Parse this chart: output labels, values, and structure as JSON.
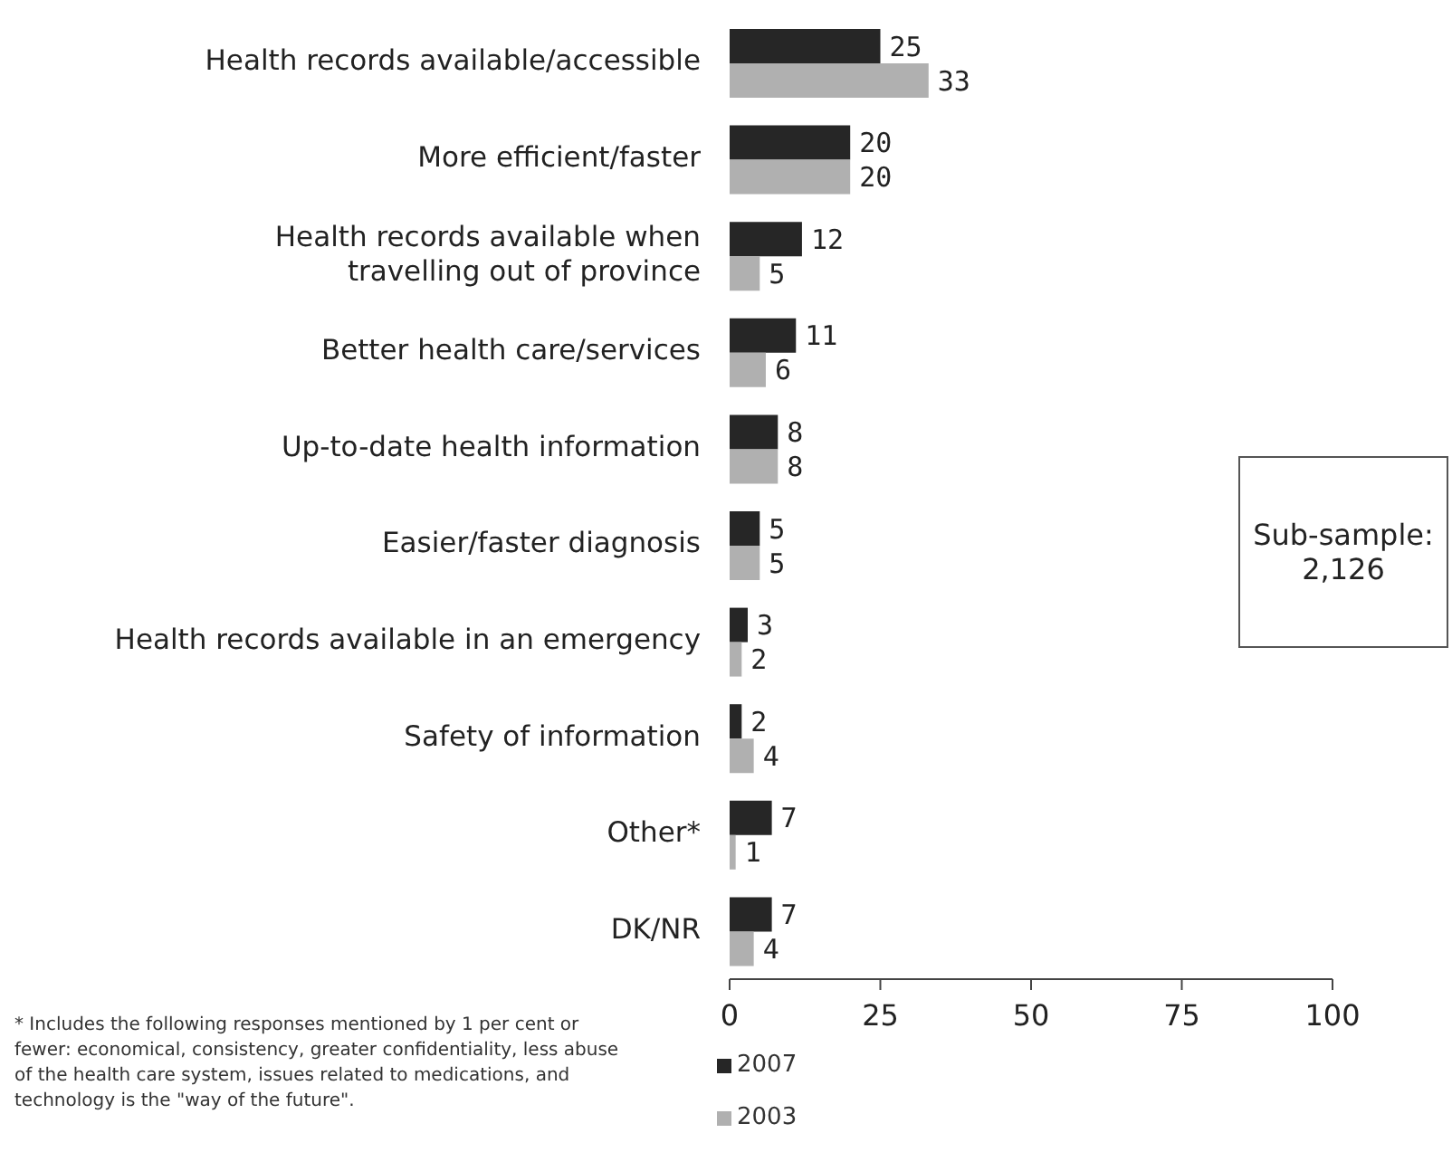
{
  "chart_data": {
    "type": "bar",
    "orientation": "horizontal",
    "categories": [
      "Health records available/accessible",
      "More efficient/faster",
      "Health records available when travelling out of province",
      "Better health care/services",
      "Up-to-date health information",
      "Easier/faster diagnosis",
      "Health records available in an emergency",
      "Safety of information",
      "Other*",
      "DK/NR"
    ],
    "series": [
      {
        "name": "2007",
        "color": "#262626",
        "values": [
          25,
          20,
          12,
          11,
          8,
          5,
          3,
          2,
          7,
          7
        ]
      },
      {
        "name": "2003",
        "color": "#b0b0b0",
        "values": [
          33,
          20,
          5,
          6,
          8,
          5,
          2,
          4,
          1,
          4
        ]
      }
    ],
    "xlim": [
      0,
      100
    ],
    "xticks": [
      0,
      25,
      50,
      75,
      100
    ],
    "data_labels": true,
    "legend": "bottom",
    "grid": false,
    "annotations": [
      "* Includes the following responses mentioned by 1 per cent or fewer: economical, consistency, greater confidentiality, less abuse of the health care system, issues related to medications, and technology is the \"way of the future\".",
      "Sub-sample: 2,126"
    ]
  }
}
